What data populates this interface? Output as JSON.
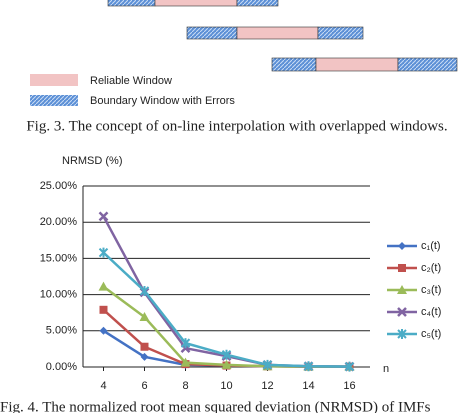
{
  "figure3": {
    "legend": [
      "Reliable Window",
      "Boundary Window with Errors"
    ],
    "caption": "Fig. 3.   The concept of on-line interpolation with overlapped windows."
  },
  "chart_data": {
    "type": "line",
    "ylabel": "NRMSD (%)",
    "xlabel": "n",
    "x": [
      4,
      6,
      8,
      10,
      12,
      14,
      16
    ],
    "xlim": [
      3,
      17
    ],
    "xticks": [
      4,
      6,
      8,
      10,
      12,
      14,
      16
    ],
    "ylim": [
      0,
      25
    ],
    "yticks": [
      {
        "value": 0,
        "label": "0.00%"
      },
      {
        "value": 5,
        "label": "5.00%"
      },
      {
        "value": 10,
        "label": "10.00%"
      },
      {
        "value": 15,
        "label": "15.00%"
      },
      {
        "value": 20,
        "label": "20.00%"
      },
      {
        "value": 25,
        "label": "25.00%"
      }
    ],
    "grid": true,
    "legend": "right",
    "series": [
      {
        "name": "c₁(t)",
        "color": "#4472c4",
        "values": [
          5.0,
          1.4,
          0.3,
          0.2,
          0.1,
          0.05,
          0.05
        ]
      },
      {
        "name": "c₂(t)",
        "color": "#c0504d",
        "values": [
          7.9,
          2.8,
          0.4,
          0.2,
          0.1,
          0.05,
          0.05
        ]
      },
      {
        "name": "c₃(t)",
        "color": "#9bbb59",
        "values": [
          11.1,
          6.9,
          0.6,
          0.3,
          0.1,
          0.05,
          0.05
        ]
      },
      {
        "name": "c₄(t)",
        "color": "#8064a2",
        "values": [
          20.8,
          10.3,
          2.6,
          1.5,
          0.3,
          0.1,
          0.05
        ]
      },
      {
        "name": "c₅(t)",
        "color": "#4bacc6",
        "values": [
          15.8,
          10.5,
          3.3,
          1.7,
          0.3,
          0.1,
          0.05
        ]
      }
    ]
  },
  "figure4": {
    "caption": "Fig. 4.   The normalized root mean squared deviation (NRMSD) of IMFs"
  }
}
